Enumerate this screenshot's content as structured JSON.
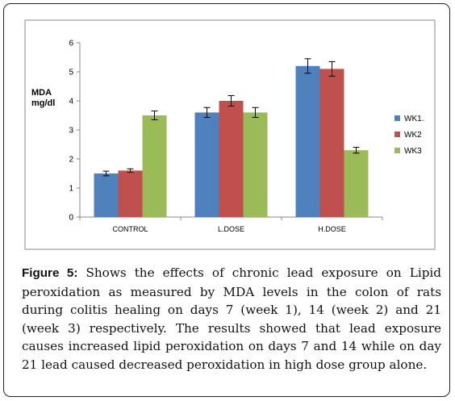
{
  "chart_data": {
    "type": "bar",
    "categories": [
      "CONTROL",
      "L.DOSE",
      "H.DOSE"
    ],
    "series": [
      {
        "name": "WK1.",
        "color": "#4f81bd",
        "values": [
          1.5,
          3.6,
          5.2
        ],
        "errors": [
          0.08,
          0.17,
          0.25
        ]
      },
      {
        "name": "WK2",
        "color": "#c0504d",
        "values": [
          1.6,
          4.0,
          5.1
        ],
        "errors": [
          0.06,
          0.18,
          0.25
        ]
      },
      {
        "name": "WK3",
        "color": "#9bbb59",
        "values": [
          3.5,
          3.6,
          2.3
        ],
        "errors": [
          0.15,
          0.17,
          0.1
        ]
      }
    ],
    "ylabel_line1": "MDA",
    "ylabel_line2": "mg/dl",
    "ylim": [
      0,
      6
    ],
    "yticks": [
      0,
      1,
      2,
      3,
      4,
      5,
      6
    ],
    "grid": false,
    "legend_position": "right"
  },
  "caption": {
    "label": "Figure 5:",
    "text": " Shows the effects of chronic lead exposure on Lipid peroxidation as measured by MDA levels in the colon of rats during colitis healing on days 7 (week 1), 14 (week 2) and 21 (week 3) respectively. The results showed that lead exposure causes increased lipid peroxidation on days 7 and 14 while on day 21 lead caused decreased peroxidation in high dose group alone."
  }
}
